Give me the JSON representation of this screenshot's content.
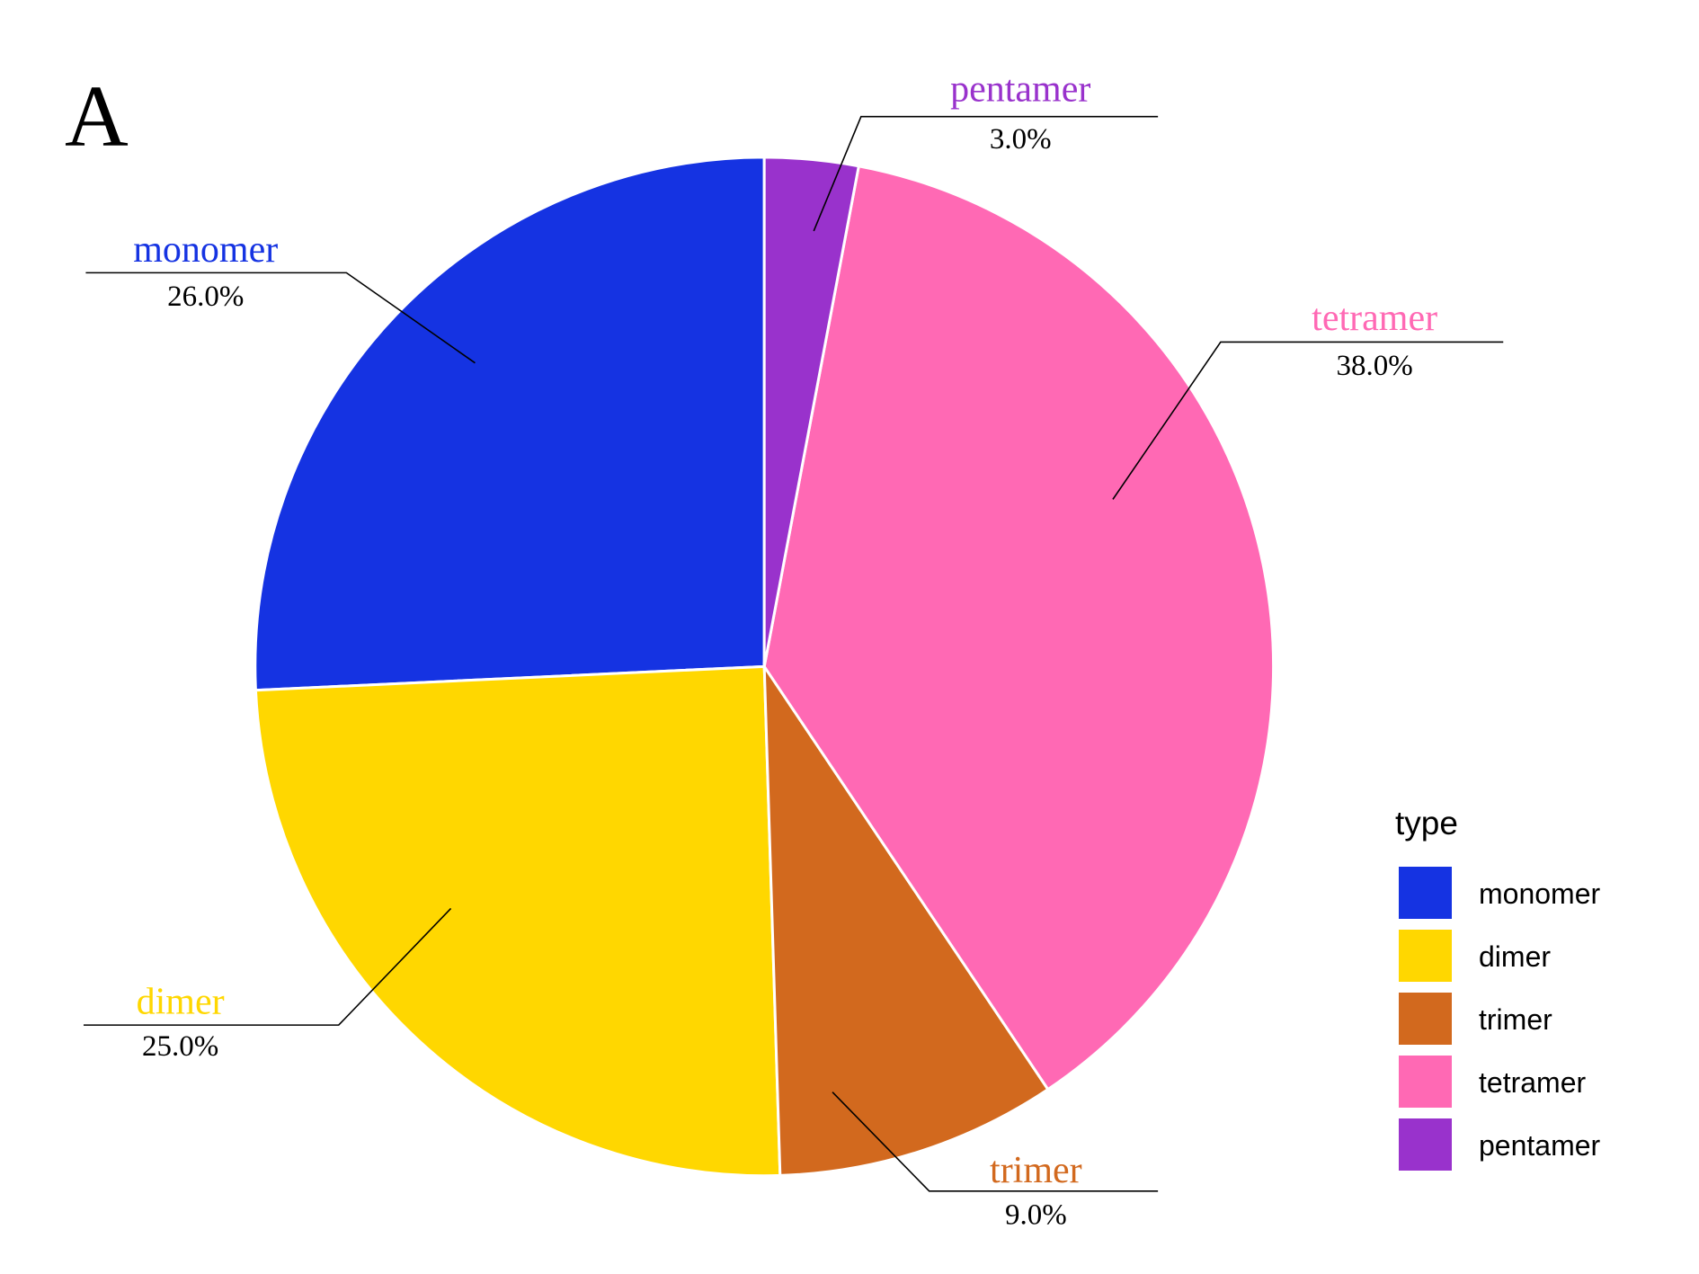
{
  "chart_data": {
    "type": "pie",
    "panel_label": "A",
    "legend_title": "type",
    "categories": [
      "monomer",
      "dimer",
      "trimer",
      "tetramer",
      "pentamer"
    ],
    "values": [
      26,
      25,
      9,
      38,
      3
    ],
    "value_labels": [
      "26.0%",
      "25.0%",
      "9.0%",
      "38.0%",
      "3.0%"
    ],
    "colors": [
      "#1533E2",
      "#FFD700",
      "#D2691E",
      "#FF69B4",
      "#9932CC"
    ]
  }
}
